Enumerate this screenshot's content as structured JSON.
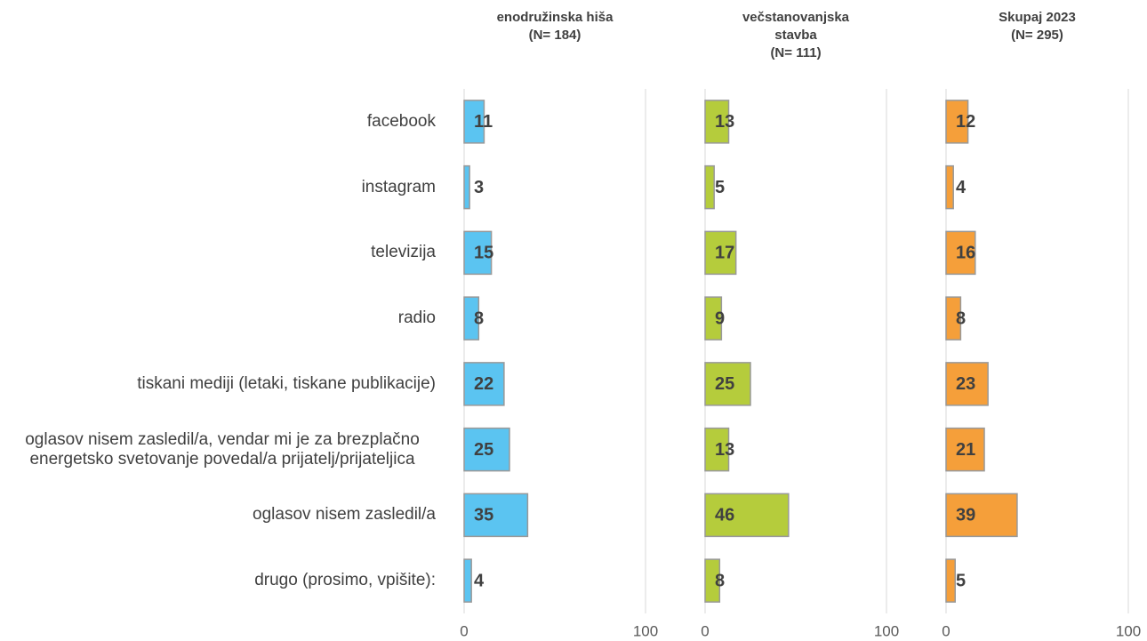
{
  "categories": [
    "facebook",
    "instagram",
    "televizija",
    "radio",
    "tiskani mediji (letaki, tiskane publikacije)",
    "oglasov nisem zasledil/a, vendar mi je za brezplačno energetsko svetovanje povedal/a prijatelj/prijateljica",
    "oglasov nisem zasledil/a",
    "drugo (prosimo, vpišite):"
  ],
  "chart_data": [
    {
      "type": "bar",
      "title": [
        "enodružinska hiša",
        "(N= 184)"
      ],
      "color": "#5bc4f1",
      "values": [
        11,
        3,
        15,
        8,
        22,
        25,
        35,
        4
      ],
      "xlim": [
        0,
        100
      ],
      "xticks": [
        0,
        100
      ],
      "grid": true
    },
    {
      "type": "bar",
      "title": [
        "večstanovanjska",
        "stavba",
        "(N= 111)"
      ],
      "color": "#b5cc3c",
      "values": [
        13,
        5,
        17,
        9,
        25,
        13,
        46,
        8
      ],
      "xlim": [
        0,
        100
      ],
      "xticks": [
        0,
        100
      ],
      "grid": true
    },
    {
      "type": "bar",
      "title": [
        "Skupaj 2023",
        "(N= 295)"
      ],
      "color": "#f59f3a",
      "values": [
        12,
        4,
        16,
        8,
        23,
        21,
        39,
        5
      ],
      "xlim": [
        0,
        100
      ],
      "xticks": [
        0,
        100
      ],
      "grid": true
    }
  ]
}
